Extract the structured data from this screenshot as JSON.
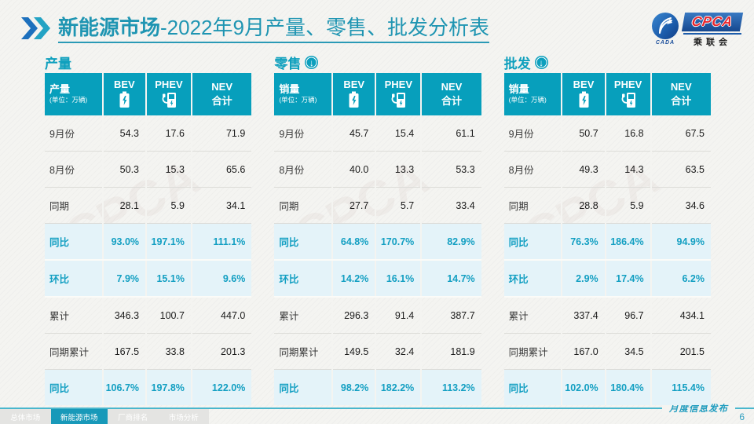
{
  "slide": {
    "title_highlight": "新能源市场",
    "title_rest": "-2022年9月产量、零售、批发分析表",
    "publish_label": "月度信息发布",
    "page_number": "6"
  },
  "logo": {
    "cpca": "CPCA",
    "cada": "CADA",
    "association": "乘联会"
  },
  "colors": {
    "accent_teal": "#079fbc",
    "percent_row_bg": "#e4f3f9",
    "percent_text": "#139fc2",
    "title_teal": "#1f95b2",
    "active_tab_teal": "#1899b9",
    "cpca_red": "#e8262d"
  },
  "icons": {
    "down_arrow": "↓"
  },
  "tables": [
    {
      "section_title": "产量",
      "has_arrow": false,
      "label_header": "产量",
      "unit": "(单位：万辆)",
      "col_bev": "BEV",
      "col_phev": "PHEV",
      "col_nev_line1": "NEV",
      "col_nev_line2": "合计",
      "rows": [
        {
          "label": "9月份",
          "type": "normal",
          "values": [
            "54.3",
            "17.6",
            "71.9"
          ]
        },
        {
          "label": "8月份",
          "type": "normal",
          "values": [
            "50.3",
            "15.3",
            "65.6"
          ]
        },
        {
          "label": "同期",
          "type": "normal",
          "values": [
            "28.1",
            "5.9",
            "34.1"
          ]
        },
        {
          "label": "同比",
          "type": "percent",
          "values": [
            "93.0%",
            "197.1%",
            "111.1%"
          ]
        },
        {
          "label": "环比",
          "type": "percent",
          "values": [
            "7.9%",
            "15.1%",
            "9.6%"
          ]
        },
        {
          "label": "累计",
          "type": "normal",
          "values": [
            "346.3",
            "100.7",
            "447.0"
          ]
        },
        {
          "label": "同期累计",
          "type": "normal",
          "values": [
            "167.5",
            "33.8",
            "201.3"
          ]
        },
        {
          "label": "同比",
          "type": "percent",
          "values": [
            "106.7%",
            "197.8%",
            "122.0%"
          ]
        }
      ]
    },
    {
      "section_title": "零售",
      "has_arrow": true,
      "label_header": "销量",
      "unit": "(单位：万辆)",
      "col_bev": "BEV",
      "col_phev": "PHEV",
      "col_nev_line1": "NEV",
      "col_nev_line2": "合计",
      "rows": [
        {
          "label": "9月份",
          "type": "normal",
          "values": [
            "45.7",
            "15.4",
            "61.1"
          ]
        },
        {
          "label": "8月份",
          "type": "normal",
          "values": [
            "40.0",
            "13.3",
            "53.3"
          ]
        },
        {
          "label": "同期",
          "type": "normal",
          "values": [
            "27.7",
            "5.7",
            "33.4"
          ]
        },
        {
          "label": "同比",
          "type": "percent",
          "values": [
            "64.8%",
            "170.7%",
            "82.9%"
          ]
        },
        {
          "label": "环比",
          "type": "percent",
          "values": [
            "14.2%",
            "16.1%",
            "14.7%"
          ]
        },
        {
          "label": "累计",
          "type": "normal",
          "values": [
            "296.3",
            "91.4",
            "387.7"
          ]
        },
        {
          "label": "同期累计",
          "type": "normal",
          "values": [
            "149.5",
            "32.4",
            "181.9"
          ]
        },
        {
          "label": "同比",
          "type": "percent",
          "values": [
            "98.2%",
            "182.2%",
            "113.2%"
          ]
        }
      ]
    },
    {
      "section_title": "批发",
      "has_arrow": true,
      "label_header": "销量",
      "unit": "(单位：万辆)",
      "col_bev": "BEV",
      "col_phev": "PHEV",
      "col_nev_line1": "NEV",
      "col_nev_line2": "合计",
      "rows": [
        {
          "label": "9月份",
          "type": "normal",
          "values": [
            "50.7",
            "16.8",
            "67.5"
          ]
        },
        {
          "label": "8月份",
          "type": "normal",
          "values": [
            "49.3",
            "14.3",
            "63.5"
          ]
        },
        {
          "label": "同期",
          "type": "normal",
          "values": [
            "28.8",
            "5.9",
            "34.6"
          ]
        },
        {
          "label": "同比",
          "type": "percent",
          "values": [
            "76.3%",
            "186.4%",
            "94.9%"
          ]
        },
        {
          "label": "环比",
          "type": "percent",
          "values": [
            "2.9%",
            "17.4%",
            "6.2%"
          ]
        },
        {
          "label": "累计",
          "type": "normal",
          "values": [
            "337.4",
            "96.7",
            "434.1"
          ]
        },
        {
          "label": "同期累计",
          "type": "normal",
          "values": [
            "167.0",
            "34.5",
            "201.5"
          ]
        },
        {
          "label": "同比",
          "type": "percent",
          "values": [
            "102.0%",
            "180.4%",
            "115.4%"
          ]
        }
      ]
    }
  ],
  "footer_tabs": [
    {
      "label": "总体市场",
      "active": false
    },
    {
      "label": "新能源市场",
      "active": true
    },
    {
      "label": "厂商排名",
      "active": false
    },
    {
      "label": "市场分析",
      "active": false
    }
  ]
}
